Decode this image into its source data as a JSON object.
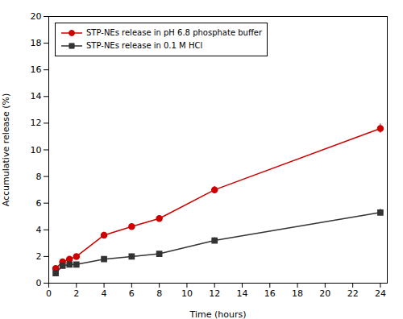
{
  "chart_data": {
    "type": "line",
    "xlabel": "Time (hours)",
    "ylabel": "Accumulative release (%)",
    "x": [
      0.5,
      1.0,
      1.5,
      2.0,
      4.0,
      6.0,
      8.0,
      12.0,
      24.0
    ],
    "series": [
      {
        "name": "STP-NEs release in pH 6.8 phosphate buffer",
        "color": "#CC0000",
        "marker": "circle",
        "values": [
          1.1,
          1.6,
          1.8,
          2.0,
          3.6,
          4.25,
          4.85,
          7.0,
          11.6
        ],
        "yerr": [
          0.12,
          0.15,
          0.15,
          0.18,
          0.22,
          0.22,
          0.2,
          0.25,
          0.35
        ]
      },
      {
        "name": "STP-NEs release in 0.1 M HCl",
        "color": "#333333",
        "marker": "square",
        "values": [
          0.75,
          1.3,
          1.4,
          1.4,
          1.8,
          2.0,
          2.2,
          3.2,
          5.3
        ],
        "yerr": [
          0.1,
          0.12,
          0.15,
          0.15,
          0.18,
          0.2,
          0.18,
          0.22,
          0.25
        ]
      }
    ],
    "xlim": [
      0,
      24.5
    ],
    "ylim": [
      0,
      20
    ],
    "xticks": [
      0,
      2,
      4,
      6,
      8,
      10,
      12,
      14,
      16,
      18,
      20,
      22,
      24
    ],
    "yticks": [
      0,
      2,
      4,
      6,
      8,
      10,
      12,
      14,
      16,
      18,
      20
    ],
    "grid": false,
    "legend": "upper left"
  }
}
